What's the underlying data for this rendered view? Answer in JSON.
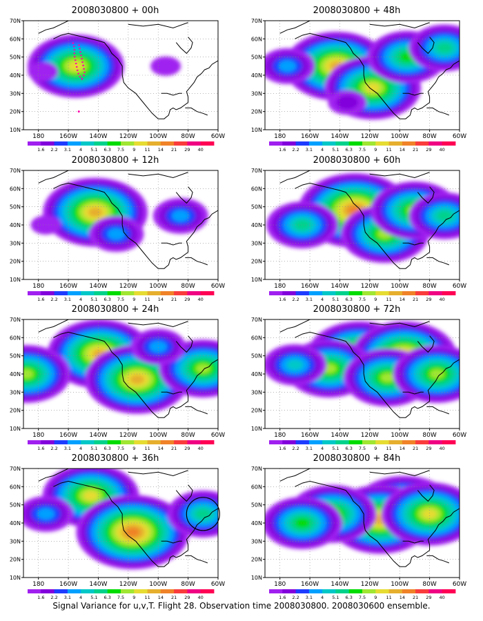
{
  "caption": "Signal Variance for u,v,T. Flight 28. Observation time 2008030800. 2008030600 ensemble.",
  "colorbar": {
    "labels": [
      "1.6",
      "2.2",
      "3.1",
      "4",
      "5.1",
      "6.3",
      "7.5",
      "9",
      "11",
      "14",
      "21",
      "29",
      "40"
    ],
    "colors": [
      "#a020f0",
      "#8200dc",
      "#1e3cff",
      "#00a0ff",
      "#00c8c8",
      "#00d28c",
      "#00dc00",
      "#a0e632",
      "#e6dc32",
      "#e6af2d",
      "#f08228",
      "#fa3c3c",
      "#f00082"
    ]
  },
  "chart_data": [
    {
      "type": "heatmap",
      "title": "2008030800 + 00h",
      "xlim": [
        170,
        300
      ],
      "ylim": [
        10,
        70
      ],
      "x_ticks": [
        "180",
        "160W",
        "140W",
        "120W",
        "100W",
        "80W",
        "60W"
      ],
      "y_ticks": [
        "10N",
        "20N",
        "30N",
        "40N",
        "50N",
        "60N",
        "70N"
      ],
      "blobs": [
        {
          "lon": 205,
          "lat": 45,
          "value": 12
        },
        {
          "lon": 265,
          "lat": 45,
          "value": 1.7
        },
        {
          "lon": 183,
          "lat": 42,
          "value": 1.7
        }
      ],
      "annotations": [
        "flight track (magenta dotted)"
      ]
    },
    {
      "type": "heatmap",
      "title": "2008030800 + 12h",
      "xlim": [
        170,
        300
      ],
      "ylim": [
        10,
        70
      ],
      "x_ticks": [
        "180",
        "160W",
        "140W",
        "120W",
        "100W",
        "80W",
        "60W"
      ],
      "y_ticks": [
        "10N",
        "20N",
        "30N",
        "40N",
        "50N",
        "60N",
        "70N"
      ],
      "blobs": [
        {
          "lon": 218,
          "lat": 47,
          "value": 14
        },
        {
          "lon": 232,
          "lat": 35,
          "value": 4
        },
        {
          "lon": 275,
          "lat": 45,
          "value": 4
        },
        {
          "lon": 185,
          "lat": 40,
          "value": 1.7
        }
      ]
    },
    {
      "type": "heatmap",
      "title": "2008030800 + 24h",
      "xlim": [
        170,
        300
      ],
      "ylim": [
        10,
        70
      ],
      "x_ticks": [
        "180",
        "160W",
        "140W",
        "120W",
        "100W",
        "80W",
        "60W"
      ],
      "y_ticks": [
        "10N",
        "20N",
        "30N",
        "40N",
        "50N",
        "60N",
        "70N"
      ],
      "blobs": [
        {
          "lon": 221,
          "lat": 51,
          "value": 14
        },
        {
          "lon": 246,
          "lat": 37,
          "value": 14
        },
        {
          "lon": 290,
          "lat": 43,
          "value": 9
        },
        {
          "lon": 172,
          "lat": 40,
          "value": 9
        },
        {
          "lon": 260,
          "lat": 55,
          "value": 4
        }
      ]
    },
    {
      "type": "heatmap",
      "title": "2008030800 + 36h",
      "xlim": [
        170,
        300
      ],
      "ylim": [
        10,
        70
      ],
      "x_ticks": [
        "180",
        "160W",
        "140W",
        "120W",
        "100W",
        "80W",
        "60W"
      ],
      "y_ticks": [
        "10N",
        "20N",
        "30N",
        "40N",
        "50N",
        "60N",
        "70N"
      ],
      "blobs": [
        {
          "lon": 215,
          "lat": 55,
          "value": 11
        },
        {
          "lon": 243,
          "lat": 35,
          "value": 21
        },
        {
          "lon": 290,
          "lat": 45,
          "value": 6.3
        },
        {
          "lon": 185,
          "lat": 45,
          "value": 4
        }
      ],
      "annotations": [
        "circle near 70W 45N"
      ]
    },
    {
      "type": "heatmap",
      "title": "2008030800 + 48h",
      "xlim": [
        170,
        300
      ],
      "ylim": [
        10,
        70
      ],
      "x_ticks": [
        "180",
        "160W",
        "140W",
        "120W",
        "100W",
        "80W",
        "60W"
      ],
      "y_ticks": [
        "10N",
        "20N",
        "30N",
        "40N",
        "50N",
        "60N",
        "70N"
      ],
      "blobs": [
        {
          "lon": 218,
          "lat": 45,
          "value": 14
        },
        {
          "lon": 242,
          "lat": 33,
          "value": 11
        },
        {
          "lon": 265,
          "lat": 50,
          "value": 7.5
        },
        {
          "lon": 290,
          "lat": 55,
          "value": 6.3
        },
        {
          "lon": 185,
          "lat": 45,
          "value": 4
        },
        {
          "lon": 225,
          "lat": 25,
          "value": 2.2
        }
      ]
    },
    {
      "type": "heatmap",
      "title": "2008030800 + 60h",
      "xlim": [
        170,
        300
      ],
      "ylim": [
        10,
        70
      ],
      "x_ticks": [
        "180",
        "160W",
        "140W",
        "120W",
        "100W",
        "80W",
        "60W"
      ],
      "y_ticks": [
        "10N",
        "20N",
        "30N",
        "40N",
        "50N",
        "60N",
        "70N"
      ],
      "blobs": [
        {
          "lon": 230,
          "lat": 48,
          "value": 21
        },
        {
          "lon": 250,
          "lat": 35,
          "value": 9
        },
        {
          "lon": 270,
          "lat": 48,
          "value": 9
        },
        {
          "lon": 195,
          "lat": 40,
          "value": 6.3
        },
        {
          "lon": 290,
          "lat": 45,
          "value": 6.3
        }
      ]
    },
    {
      "type": "heatmap",
      "title": "2008030800 + 72h",
      "xlim": [
        170,
        300
      ],
      "ylim": [
        10,
        70
      ],
      "x_ticks": [
        "180",
        "160W",
        "140W",
        "120W",
        "100W",
        "80W",
        "60W"
      ],
      "y_ticks": [
        "10N",
        "20N",
        "30N",
        "40N",
        "50N",
        "60N",
        "70N"
      ],
      "blobs": [
        {
          "lon": 233,
          "lat": 50,
          "value": 14
        },
        {
          "lon": 263,
          "lat": 50,
          "value": 14
        },
        {
          "lon": 213,
          "lat": 43,
          "value": 9
        },
        {
          "lon": 252,
          "lat": 38,
          "value": 9
        },
        {
          "lon": 285,
          "lat": 40,
          "value": 9
        },
        {
          "lon": 190,
          "lat": 45,
          "value": 5.1
        }
      ]
    },
    {
      "type": "heatmap",
      "title": "2008030800 + 84h",
      "xlim": [
        170,
        300
      ],
      "ylim": [
        10,
        70
      ],
      "x_ticks": [
        "180",
        "160W",
        "140W",
        "120W",
        "100W",
        "80W",
        "60W"
      ],
      "y_ticks": [
        "10N",
        "20N",
        "30N",
        "40N",
        "50N",
        "60N",
        "70N"
      ],
      "blobs": [
        {
          "lon": 263,
          "lat": 47,
          "value": 14
        },
        {
          "lon": 247,
          "lat": 42,
          "value": 14
        },
        {
          "lon": 280,
          "lat": 45,
          "value": 11
        },
        {
          "lon": 215,
          "lat": 45,
          "value": 9
        },
        {
          "lon": 195,
          "lat": 40,
          "value": 7.5
        }
      ]
    }
  ]
}
